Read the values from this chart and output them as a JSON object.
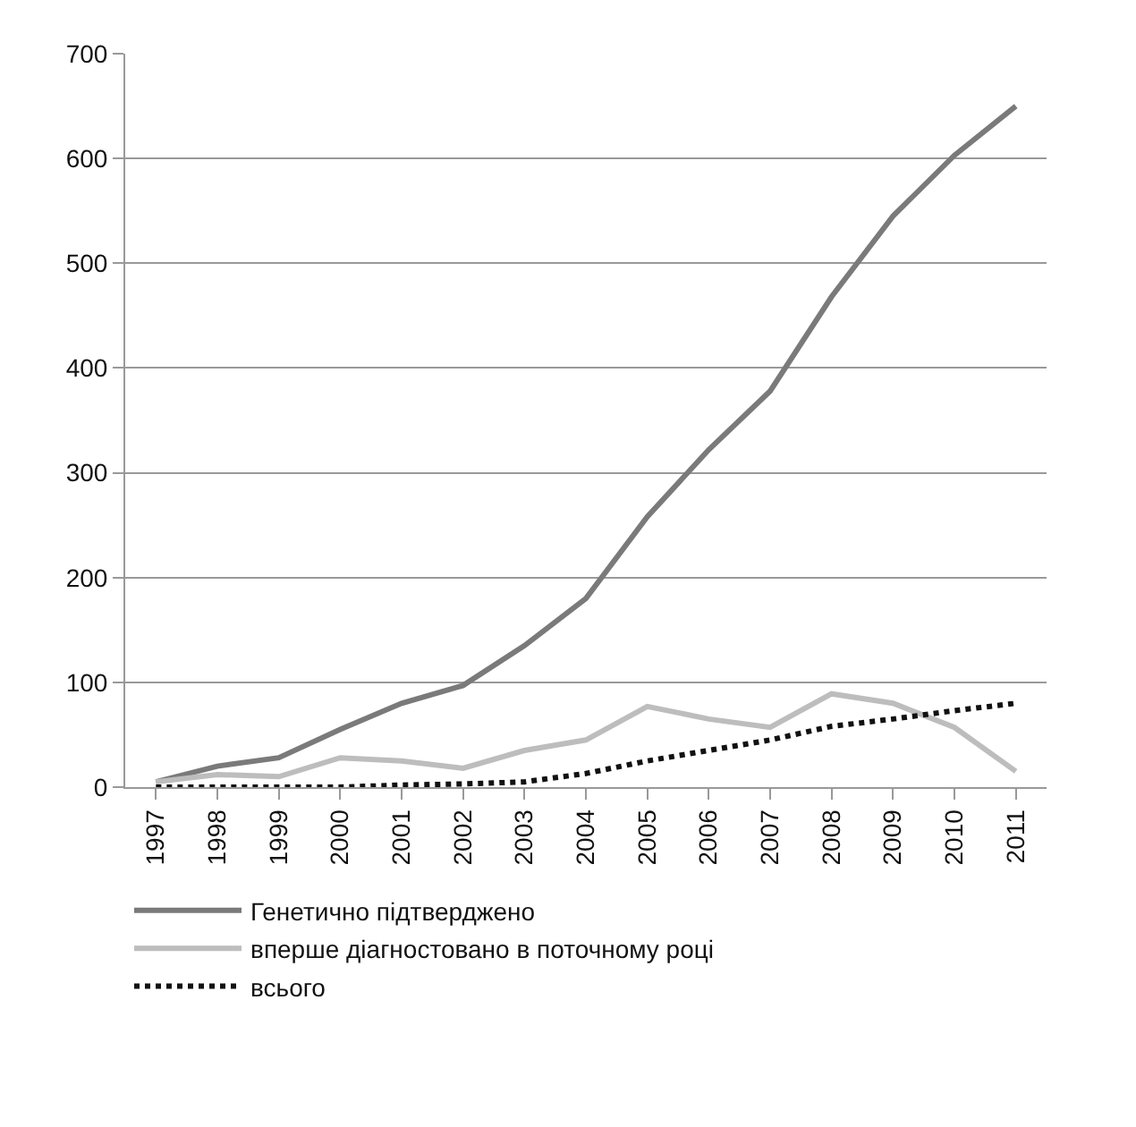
{
  "chart_data": {
    "type": "line",
    "categories": [
      "1997",
      "1998",
      "1999",
      "2000",
      "2001",
      "2002",
      "2003",
      "2004",
      "2005",
      "2006",
      "2007",
      "2008",
      "2009",
      "2010",
      "2011"
    ],
    "series": [
      {
        "name": "Генетично підтверджено",
        "color": "#7a7a7a",
        "values": [
          5,
          20,
          28,
          55,
          80,
          97,
          135,
          180,
          258,
          322,
          378,
          468,
          545,
          603,
          650
        ]
      },
      {
        "name": "вперше діагностовано в поточному році",
        "color": "#bdbdbd",
        "values": [
          5,
          12,
          10,
          28,
          25,
          18,
          35,
          45,
          77,
          65,
          57,
          89,
          80,
          57,
          15
        ]
      },
      {
        "name": "всього",
        "color": "#111111",
        "line_style": "dotted",
        "values": [
          0,
          0,
          0,
          0,
          2,
          3,
          5,
          13,
          25,
          35,
          45,
          58,
          65,
          73,
          80
        ]
      }
    ],
    "ylim": [
      0,
      700
    ],
    "yticks": [
      0,
      100,
      200,
      300,
      400,
      500,
      600,
      700
    ],
    "grid": "y",
    "legend": "bottom",
    "marker": "none",
    "line_style": "solid"
  }
}
